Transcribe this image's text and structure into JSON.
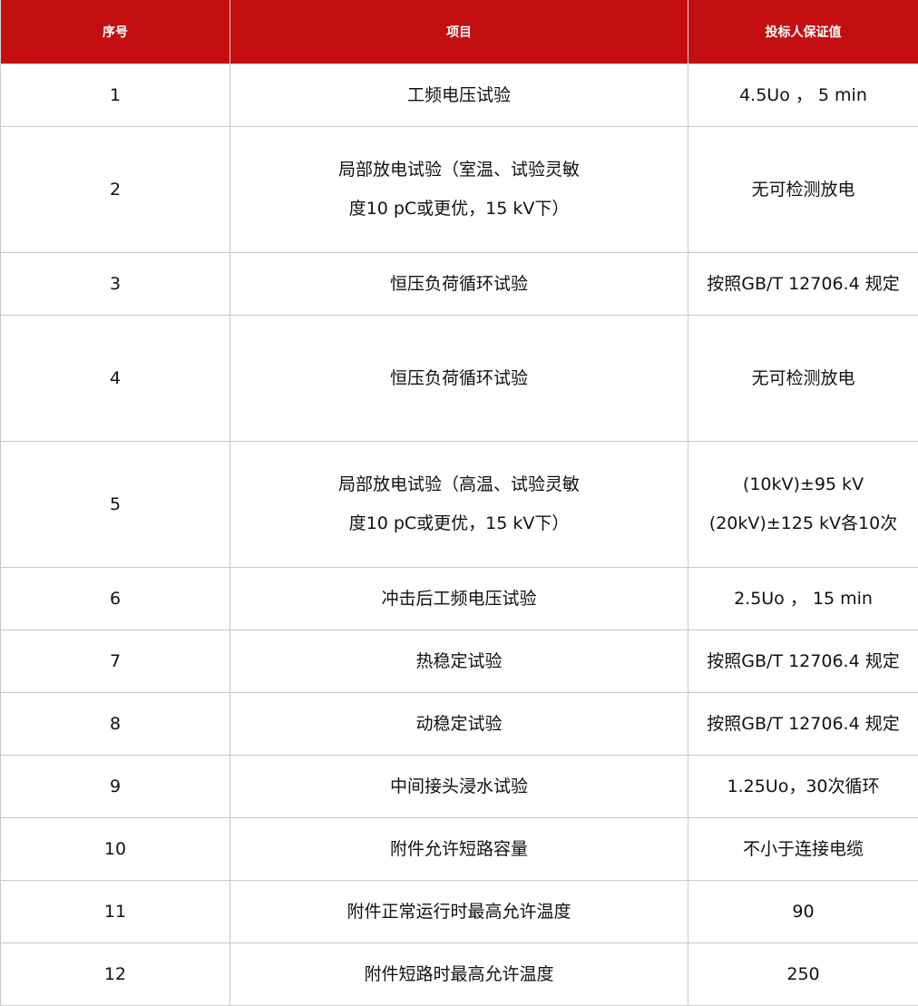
{
  "header": {
    "col1": "序号",
    "col2": "项目",
    "col3": "投标人保证值"
  },
  "rows": [
    {
      "no": "1",
      "item": [
        "工频电压试验"
      ],
      "value": [
        "4.5Uo ， 5 min"
      ]
    },
    {
      "no": "2",
      "item": [
        "局部放电试验（室温、试验灵敏",
        "度10 pC或更优，15 kV下）"
      ],
      "value": [
        "无可检测放电"
      ]
    },
    {
      "no": "3",
      "item": [
        "恒压负荷循环试验"
      ],
      "value": [
        "按照GB/T 12706.4 规定"
      ]
    },
    {
      "no": "4",
      "item": [
        "恒压负荷循环试验"
      ],
      "value": [
        "无可检测放电"
      ]
    },
    {
      "no": "5",
      "item": [
        "局部放电试验（高温、试验灵敏",
        "度10 pC或更优，15 kV下）"
      ],
      "value": [
        "(10kV)±95 kV",
        "(20kV)±125 kV各10次"
      ]
    },
    {
      "no": "6",
      "item": [
        "冲击后工频电压试验"
      ],
      "value": [
        "2.5Uo ， 15 min"
      ]
    },
    {
      "no": "7",
      "item": [
        "热稳定试验"
      ],
      "value": [
        "按照GB/T 12706.4 规定"
      ]
    },
    {
      "no": "8",
      "item": [
        "动稳定试验"
      ],
      "value": [
        "按照GB/T 12706.4 规定"
      ]
    },
    {
      "no": "9",
      "item": [
        "中间接头浸水试验"
      ],
      "value": [
        "1.25Uo，30次循环"
      ]
    },
    {
      "no": "10",
      "item": [
        "附件允许短路容量"
      ],
      "value": [
        "不小于连接电缆"
      ]
    },
    {
      "no": "11",
      "item": [
        "附件正常运行时最高允许温度"
      ],
      "value": [
        "90"
      ]
    },
    {
      "no": "12",
      "item": [
        "附件短路时最高允许温度"
      ],
      "value": [
        "250"
      ]
    }
  ],
  "colors": {
    "header_bg": "#C40F12",
    "header_text": "#FFFFFF",
    "border": "#C8C8C8"
  }
}
